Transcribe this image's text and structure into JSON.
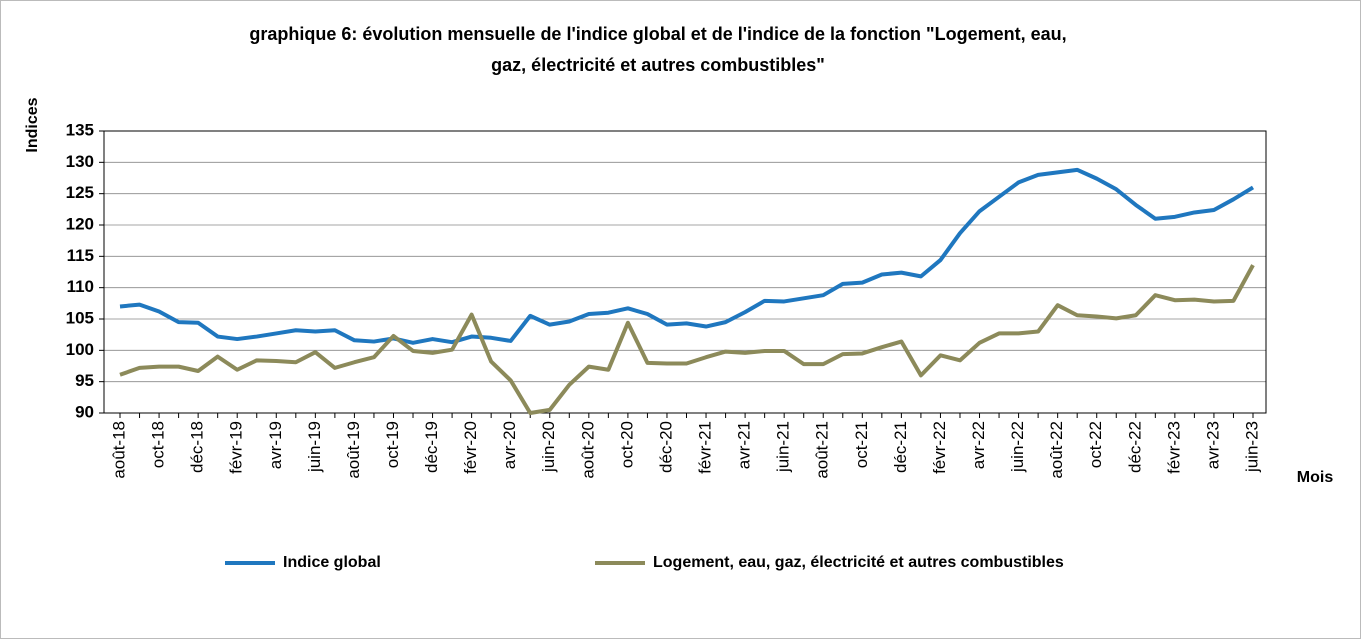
{
  "chart_data": {
    "type": "line",
    "title": "graphique 6: évolution mensuelle de l'indice global et de l'indice de la fonction \"Logement, eau,",
    "subtitle": "gaz, électricité et autres combustibles\"",
    "ylabel": "Indices",
    "xlabel": "Mois",
    "categories": [
      "août-18",
      null,
      "oct-18",
      null,
      "déc-18",
      null,
      "févr-19",
      null,
      "avr-19",
      null,
      "juin-19",
      null,
      "août-19",
      null,
      "oct-19",
      null,
      "déc-19",
      null,
      "févr-20",
      null,
      "avr-20",
      null,
      "juin-20",
      null,
      "août-20",
      null,
      "oct-20",
      null,
      "déc-20",
      null,
      "févr-21",
      null,
      "avr-21",
      null,
      "juin-21",
      null,
      "août-21",
      null,
      "oct-21",
      null,
      "déc-21",
      null,
      "févr-22",
      null,
      "avr-22",
      null,
      "juin-22",
      null,
      "août-22",
      null,
      "oct-22",
      null,
      "déc-22",
      null,
      "févr-23",
      null,
      "avr-23",
      null,
      "juin-23"
    ],
    "series": [
      {
        "name": "Indice global",
        "color": "#1f77bf",
        "values": [
          107.0,
          107.3,
          106.2,
          104.5,
          104.4,
          102.2,
          101.8,
          102.2,
          102.7,
          103.2,
          103.0,
          103.2,
          101.6,
          101.4,
          101.9,
          101.2,
          101.8,
          101.3,
          102.2,
          102.0,
          101.5,
          105.5,
          104.1,
          104.6,
          105.8,
          106.0,
          106.7,
          105.8,
          104.1,
          104.3,
          103.8,
          104.5,
          106.1,
          107.9,
          107.8,
          108.3,
          108.8,
          110.6,
          110.8,
          112.1,
          112.4,
          111.8,
          114.4,
          118.7,
          122.2,
          124.5,
          126.8,
          128.0,
          128.4,
          128.8,
          127.4,
          125.7,
          123.2,
          121.0,
          121.3,
          122.0,
          122.4,
          124.1,
          126.0
        ]
      },
      {
        "name": "Logement, eau, gaz, électricité et autres combustibles",
        "color": "#8c8a5a",
        "values": [
          96.1,
          97.2,
          97.4,
          97.4,
          96.7,
          99.0,
          96.9,
          98.4,
          98.3,
          98.1,
          99.7,
          97.2,
          98.1,
          98.9,
          102.3,
          99.9,
          99.6,
          100.1,
          105.7,
          98.2,
          95.2,
          90.0,
          90.5,
          94.5,
          97.4,
          96.9,
          104.4,
          98.0,
          97.9,
          97.9,
          98.9,
          99.8,
          99.6,
          99.9,
          99.9,
          97.8,
          97.8,
          99.4,
          99.5,
          100.5,
          101.4,
          96.0,
          99.2,
          98.4,
          101.2,
          102.7,
          102.7,
          103.0,
          107.2,
          105.6,
          105.4,
          105.1,
          105.6,
          108.8,
          108.0,
          108.1,
          107.8,
          107.9,
          113.6
        ]
      }
    ],
    "ylim": [
      90,
      135
    ],
    "yticks": [
      90,
      95,
      100,
      105,
      110,
      115,
      120,
      125,
      130,
      135
    ],
    "grid": true,
    "legend": "bottom"
  }
}
